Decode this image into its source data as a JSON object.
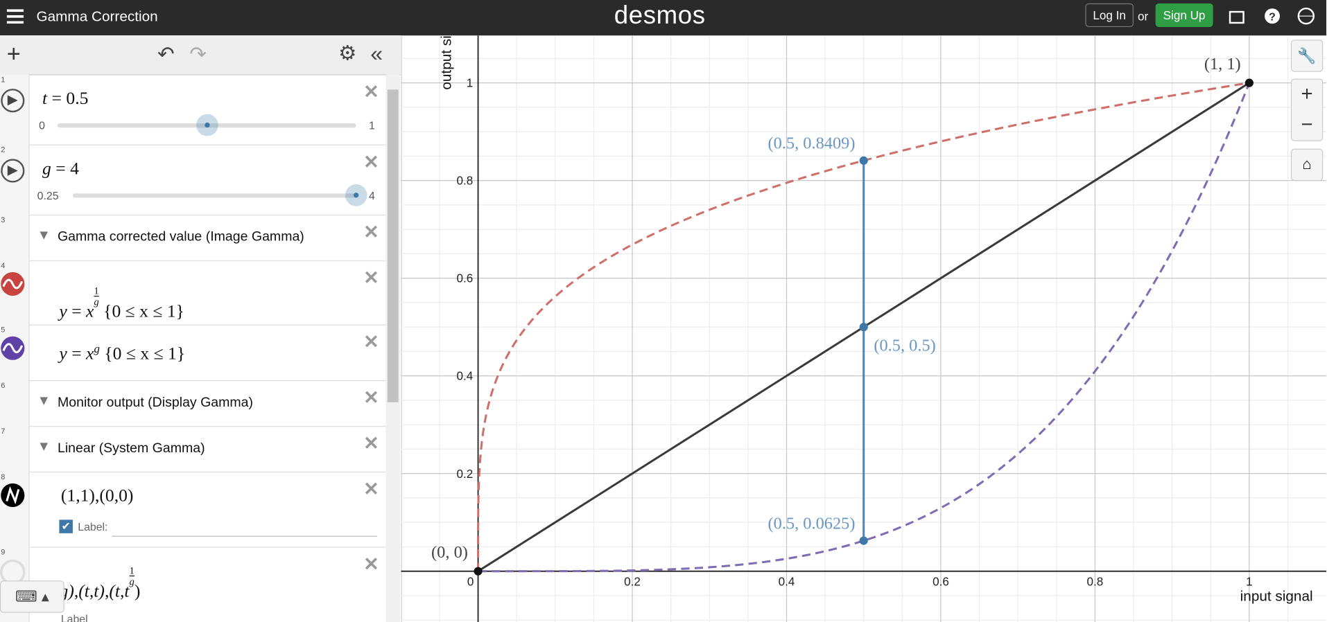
{
  "header": {
    "title": "Gamma Correction",
    "logo": "desmos",
    "login": "Log In",
    "or": "or",
    "signup": "Sign Up"
  },
  "expressions": [
    {
      "number": "1",
      "name": "t",
      "value": 0.5,
      "min": 0,
      "max": 1
    },
    {
      "number": "2",
      "name": "g",
      "value": 4,
      "min": 0.25,
      "max": 4
    },
    {
      "number": "3",
      "folder": "Gamma corrected value (Image Gamma)"
    },
    {
      "number": "4",
      "lhs": "y",
      "base": "x",
      "exp_num": "1",
      "exp_den": "g",
      "domain": "{0 ≤ x ≤ 1}"
    },
    {
      "number": "5",
      "lhs": "y",
      "base": "x",
      "exp": "g",
      "domain": "{0 ≤ x ≤ 1}"
    },
    {
      "number": "6",
      "folder": "Monitor output (Display Gamma)"
    },
    {
      "number": "7",
      "folder": "Linear (System Gamma)"
    },
    {
      "number": "8",
      "text": "(1,1),(0,0)",
      "label": "Label:"
    },
    {
      "number": "9",
      "text": "(t,g),(t,t),(t,t",
      "exp_num": "1",
      "exp_den": "g",
      "close": ")",
      "label": "Label"
    }
  ],
  "graph": {
    "x_label": "input signal",
    "y_label": "output signal",
    "xlim": [
      -0.1,
      1.1
    ],
    "ylim": [
      -0.104,
      1.097
    ],
    "xticks": [
      0,
      0.2,
      0.4,
      0.6,
      0.8,
      1
    ],
    "yticks": [
      0.2,
      0.4,
      0.6,
      0.8,
      1
    ],
    "grid": true,
    "curve_colors": [
      "#cf6f69",
      "#7f6cb3"
    ],
    "line_color": "#3a3a3a",
    "segment_color": "#4f87b3",
    "points": [
      {
        "x": 0,
        "y": 0,
        "label": "(0, 0)",
        "color": "#111111"
      },
      {
        "x": 1,
        "y": 1,
        "label": "(1, 1)",
        "color": "#111111"
      },
      {
        "x": 0.5,
        "y": 0.8409,
        "label": "(0.5, 0.8409)",
        "color": "#3f78a8"
      },
      {
        "x": 0.5,
        "y": 0.5,
        "label": "(0.5, 0.5)",
        "color": "#3f78a8"
      },
      {
        "x": 0.5,
        "y": 0.0625,
        "label": "(0.5, 0.0625)",
        "color": "#3f78a8"
      }
    ]
  }
}
